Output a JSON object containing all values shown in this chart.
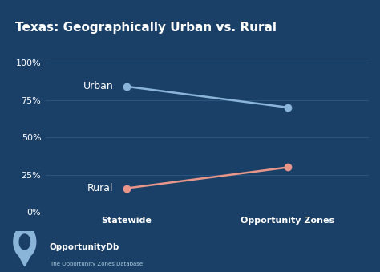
{
  "title": "Texas: Geographically Urban vs. Rural",
  "background_color": "#1b4068",
  "grid_color": "#2a5580",
  "text_color": "#ffffff",
  "x_labels": [
    "Statewide",
    "Opportunity Zones"
  ],
  "urban_values": [
    84,
    70
  ],
  "rural_values": [
    16,
    30
  ],
  "urban_color": "#8ab4d8",
  "rural_color": "#e8968a",
  "urban_label": "Urban",
  "rural_label": "Rural",
  "y_ticks": [
    0,
    25,
    50,
    75,
    100
  ],
  "y_tick_labels": [
    "0%",
    "25%",
    "50%",
    "75%",
    "100%"
  ],
  "marker_size": 6,
  "line_width": 1.8,
  "title_fontsize": 11,
  "axis_label_fontsize": 8,
  "tick_fontsize": 8,
  "annotation_fontsize": 9,
  "watermark_text": "OpportunityDb",
  "watermark_sub": "The Opportunity Zones Database"
}
